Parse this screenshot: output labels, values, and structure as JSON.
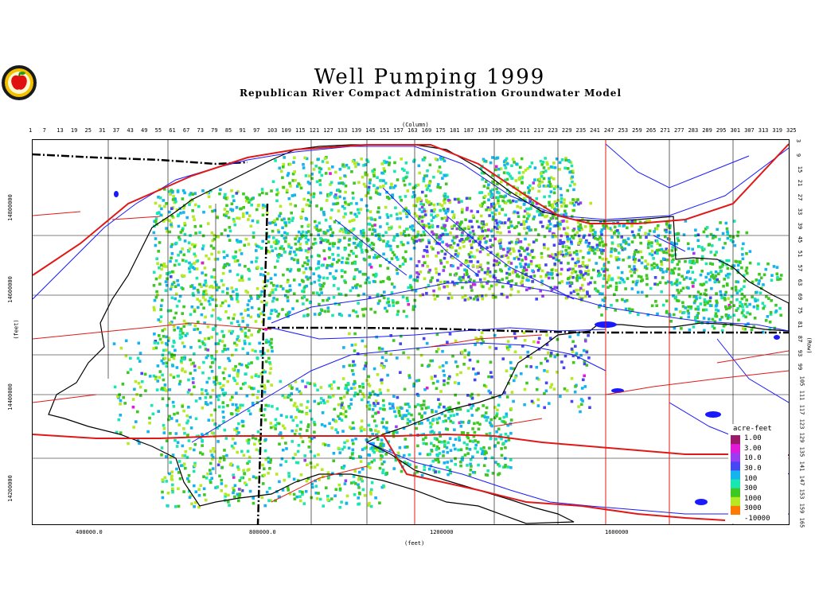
{
  "header": {
    "title": "Well Pumping 1999",
    "subtitle": "Republican River Compact Administration Groundwater Model"
  },
  "logo": {
    "icon": "apple-seal-icon",
    "colors": {
      "ring": "#1a1a1a",
      "gold": "#f2c200",
      "apple": "#e01010"
    }
  },
  "axes": {
    "top_label": "(Column)",
    "top_ticks": [
      "1",
      "7",
      "13",
      "19",
      "25",
      "31",
      "37",
      "43",
      "49",
      "55",
      "61",
      "67",
      "73",
      "79",
      "85",
      "91",
      "97",
      "103",
      "109",
      "115",
      "121",
      "127",
      "133",
      "139",
      "145",
      "151",
      "157",
      "163",
      "169",
      "175",
      "181",
      "187",
      "193",
      "199",
      "205",
      "211",
      "217",
      "223",
      "229",
      "235",
      "241",
      "247",
      "253",
      "259",
      "265",
      "271",
      "277",
      "283",
      "289",
      "295",
      "301",
      "307",
      "313",
      "319",
      "325"
    ],
    "right_label": "(Row)",
    "right_ticks": [
      "3",
      "9",
      "15",
      "21",
      "27",
      "33",
      "39",
      "45",
      "51",
      "57",
      "63",
      "69",
      "75",
      "81",
      "87",
      "93",
      "99",
      "105",
      "111",
      "117",
      "123",
      "129",
      "135",
      "141",
      "147",
      "153",
      "159",
      "165"
    ],
    "left_label": "(feet)",
    "left_ticks": [
      "14800000",
      "14600000",
      "14400000",
      "14200000"
    ],
    "bottom_label": "(feet)",
    "bottom_ticks": [
      "400000.0",
      "800000.0",
      "1200000",
      "1600000"
    ]
  },
  "legend": {
    "title": "acre-feet",
    "labels": [
      "1.00",
      "3.00",
      "10.0",
      "30.0",
      "100",
      "300",
      "1000",
      "3000",
      "-10000"
    ],
    "colors": [
      "#9b1a6a",
      "#e01ad6",
      "#9a3cf0",
      "#4646f2",
      "#16b4ef",
      "#19e6b0",
      "#3ec822",
      "#b5ea22",
      "#ff7a00"
    ]
  },
  "colors": {
    "river": "#1a1aff",
    "road": "#e01818",
    "boundary": "#000000"
  }
}
